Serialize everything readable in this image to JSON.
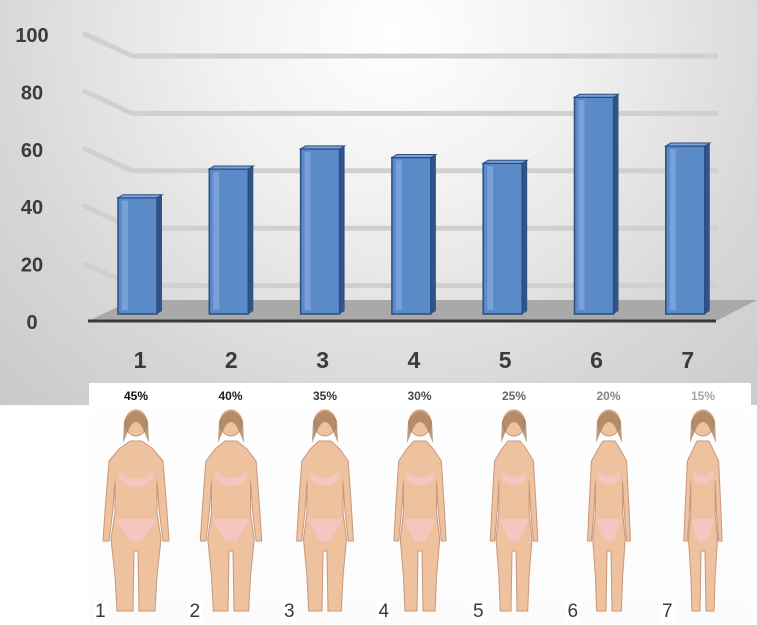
{
  "chart_data": {
    "type": "bar",
    "categories": [
      "1",
      "2",
      "3",
      "4",
      "5",
      "6",
      "7"
    ],
    "values": [
      44,
      54,
      61,
      58,
      56,
      79,
      62
    ],
    "ylim": [
      0,
      100
    ],
    "yticks": [
      0,
      20,
      40,
      60,
      80,
      100
    ],
    "title": "",
    "xlabel": "",
    "ylabel": "",
    "grid": true,
    "bar_color": "#5b8ac9"
  },
  "figures": {
    "items": [
      {
        "percent": "45%",
        "number": "1",
        "percent_color": "#111111"
      },
      {
        "percent": "40%",
        "number": "2",
        "percent_color": "#222222"
      },
      {
        "percent": "35%",
        "number": "3",
        "percent_color": "#353535"
      },
      {
        "percent": "30%",
        "number": "4",
        "percent_color": "#4a4a4a"
      },
      {
        "percent": "25%",
        "number": "5",
        "percent_color": "#666666"
      },
      {
        "percent": "20%",
        "number": "6",
        "percent_color": "#848484"
      },
      {
        "percent": "15%",
        "number": "7",
        "percent_color": "#a6a6a6"
      }
    ],
    "skin_color": "#eec29f",
    "underwear_color": "#f3c6c2"
  }
}
